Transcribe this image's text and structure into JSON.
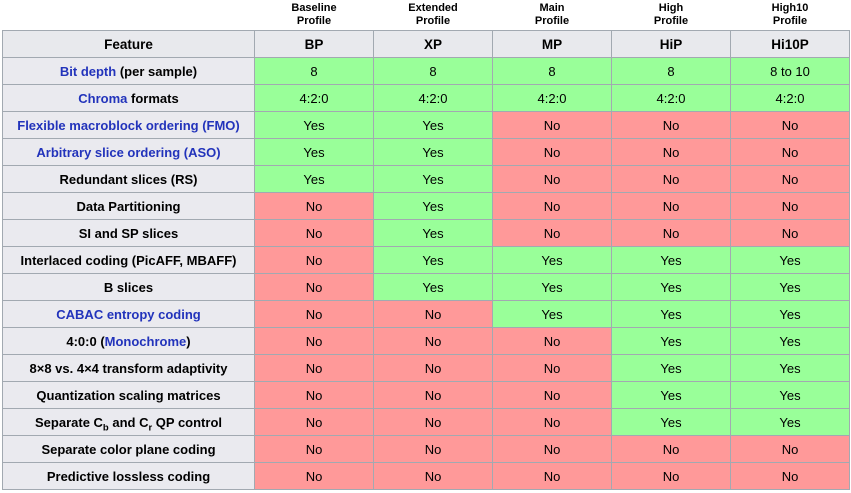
{
  "colors": {
    "yes_bg": "#99FF99",
    "no_bg": "#FF9999",
    "header_bg": "#E8E9ED",
    "feature_bg": "#EAEAEF",
    "border": "#A2A9B1",
    "link": "#2233BB"
  },
  "profiles_header": [
    {
      "line1": "Baseline",
      "line2": "Profile"
    },
    {
      "line1": "Extended",
      "line2": "Profile"
    },
    {
      "line1": "Main",
      "line2": "Profile"
    },
    {
      "line1": "High",
      "line2": "Profile"
    },
    {
      "line1": "High10",
      "line2": "Profile"
    }
  ],
  "columns": {
    "feature": "Feature",
    "abbrs": [
      "BP",
      "XP",
      "MP",
      "HiP",
      "Hi10P"
    ]
  },
  "rows": [
    {
      "label": [
        {
          "t": "Bit depth",
          "link": true
        },
        {
          "t": " (per sample)"
        }
      ],
      "values": [
        "8",
        "8",
        "8",
        "8",
        "8 to 10"
      ]
    },
    {
      "label": [
        {
          "t": "Chroma",
          "link": true
        },
        {
          "t": " formats"
        }
      ],
      "values": [
        "4:2:0",
        "4:2:0",
        "4:2:0",
        "4:2:0",
        "4:2:0"
      ]
    },
    {
      "label": [
        {
          "t": "Flexible macroblock ordering (FMO)",
          "link": true
        }
      ],
      "values": [
        "Yes",
        "Yes",
        "No",
        "No",
        "No"
      ]
    },
    {
      "label": [
        {
          "t": "Arbitrary slice ordering (ASO)",
          "link": true
        }
      ],
      "values": [
        "Yes",
        "Yes",
        "No",
        "No",
        "No"
      ]
    },
    {
      "label": [
        {
          "t": "Redundant slices (RS)"
        }
      ],
      "values": [
        "Yes",
        "Yes",
        "No",
        "No",
        "No"
      ]
    },
    {
      "label": [
        {
          "t": "Data Partitioning"
        }
      ],
      "values": [
        "No",
        "Yes",
        "No",
        "No",
        "No"
      ]
    },
    {
      "label": [
        {
          "t": "SI and SP slices"
        }
      ],
      "values": [
        "No",
        "Yes",
        "No",
        "No",
        "No"
      ]
    },
    {
      "label": [
        {
          "t": "Interlaced coding (PicAFF, MBAFF)"
        }
      ],
      "values": [
        "No",
        "Yes",
        "Yes",
        "Yes",
        "Yes"
      ]
    },
    {
      "label": [
        {
          "t": "B slices"
        }
      ],
      "values": [
        "No",
        "Yes",
        "Yes",
        "Yes",
        "Yes"
      ]
    },
    {
      "label": [
        {
          "t": "CABAC entropy coding",
          "link": true
        }
      ],
      "values": [
        "No",
        "No",
        "Yes",
        "Yes",
        "Yes"
      ]
    },
    {
      "label": [
        {
          "t": "4:0:0 ("
        },
        {
          "t": "Monochrome",
          "link": true
        },
        {
          "t": ")"
        }
      ],
      "values": [
        "No",
        "No",
        "No",
        "Yes",
        "Yes"
      ]
    },
    {
      "label": [
        {
          "t": "8×8 vs. 4×4 transform adaptivity"
        }
      ],
      "values": [
        "No",
        "No",
        "No",
        "Yes",
        "Yes"
      ]
    },
    {
      "label": [
        {
          "t": "Quantization scaling matrices"
        }
      ],
      "values": [
        "No",
        "No",
        "No",
        "Yes",
        "Yes"
      ]
    },
    {
      "label": [
        {
          "t": "Separate C"
        },
        {
          "t": "b",
          "sub": true
        },
        {
          "t": " and C"
        },
        {
          "t": "r",
          "sub": true
        },
        {
          "t": " QP control"
        }
      ],
      "values": [
        "No",
        "No",
        "No",
        "Yes",
        "Yes"
      ]
    },
    {
      "label": [
        {
          "t": "Separate color plane coding"
        }
      ],
      "values": [
        "No",
        "No",
        "No",
        "No",
        "No"
      ]
    },
    {
      "label": [
        {
          "t": "Predictive lossless coding"
        }
      ],
      "values": [
        "No",
        "No",
        "No",
        "No",
        "No"
      ]
    }
  ]
}
